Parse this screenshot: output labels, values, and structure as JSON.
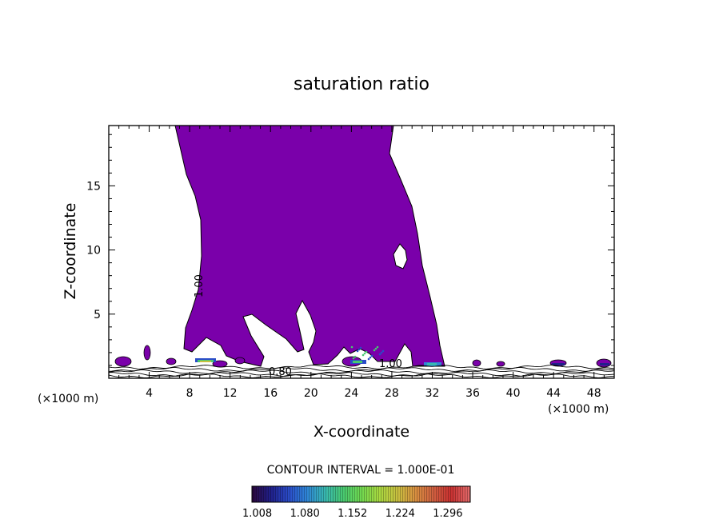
{
  "chart_data": {
    "type": "contour",
    "title": "saturation ratio",
    "xlabel": "X-coordinate",
    "ylabel": "Z-coordinate",
    "x_unit": "(×1000 m)",
    "y_unit": "(×1000 m)",
    "xlim": [
      0,
      50
    ],
    "ylim": [
      0,
      19.7
    ],
    "x_ticks": [
      4,
      8,
      12,
      16,
      20,
      24,
      28,
      32,
      36,
      40,
      44,
      48
    ],
    "y_ticks": [
      5,
      10,
      15
    ],
    "contour_labels": [
      "1.00",
      "0.80",
      "1.00"
    ],
    "contour_interval": "CONTOUR INTERVAL = 1.000E-01",
    "colorbar": {
      "ticks": [
        "1.008",
        "1.080",
        "1.152",
        "1.224",
        "1.296"
      ],
      "range": [
        1.0,
        1.33
      ],
      "colors": [
        "#2a0840",
        "#20208a",
        "#2a4cc8",
        "#2f86d6",
        "#38b8b0",
        "#48c870",
        "#70d850",
        "#a8d840",
        "#c8c040",
        "#d89040",
        "#d06040",
        "#c83030",
        "#e06868"
      ]
    },
    "fill_color": "#7a00aa"
  }
}
